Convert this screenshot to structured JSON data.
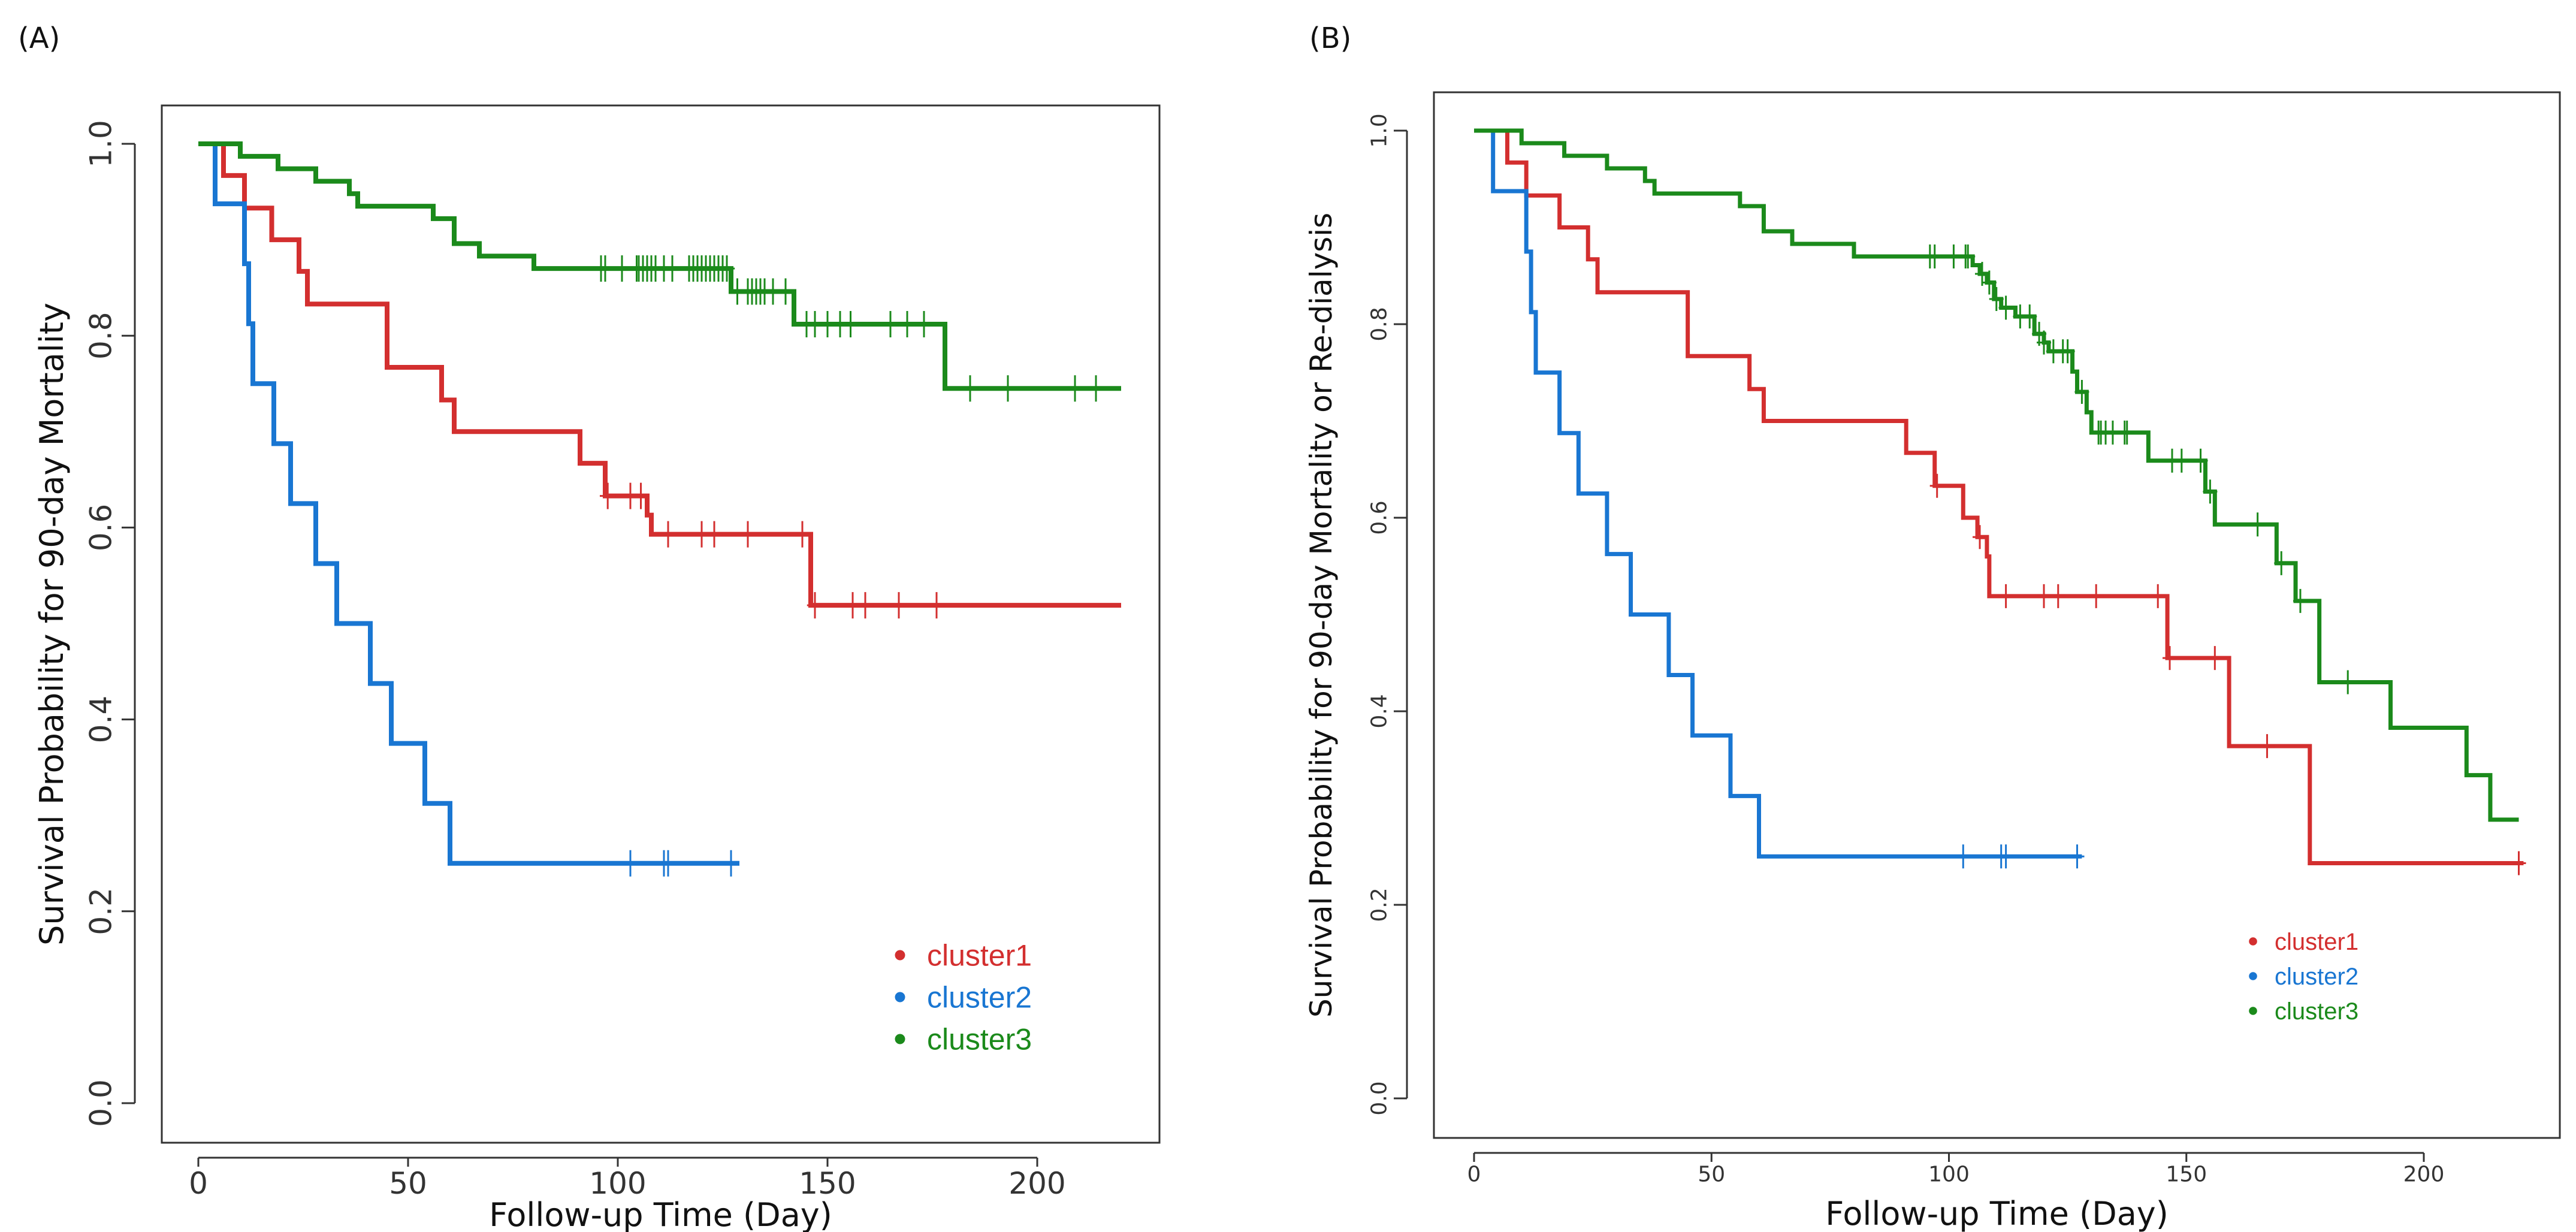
{
  "colors": {
    "cluster1": "#d32f2f",
    "cluster2": "#1976d2",
    "cluster3": "#1b8a1b",
    "axis": "#333333"
  },
  "chart_data": [
    {
      "type": "line",
      "panel_label": "(A)",
      "title": "",
      "xlabel": "Follow-up Time (Day)",
      "ylabel": "Survival Probability for 90-day Mortality",
      "xlim": [
        0,
        220
      ],
      "ylim": [
        0,
        1
      ],
      "xticks": [
        "0",
        "50",
        "100",
        "150",
        "200"
      ],
      "yticks": [
        "0.0",
        "0.2",
        "0.4",
        "0.6",
        "0.8",
        "1.0"
      ],
      "legend_position": "bottom-right",
      "legend": [
        "cluster1",
        "cluster2",
        "cluster3"
      ],
      "series": [
        {
          "name": "cluster1",
          "end": 220,
          "steps": [
            [
              0,
              1
            ],
            [
              6,
              0.967
            ],
            [
              11,
              0.933
            ],
            [
              17.5,
              0.9
            ],
            [
              24,
              0.867
            ],
            [
              26,
              0.833
            ],
            [
              45,
              0.767
            ],
            [
              58,
              0.733
            ],
            [
              61,
              0.7
            ],
            [
              91,
              0.667
            ],
            [
              97,
              0.633
            ],
            [
              107,
              0.613
            ],
            [
              108,
              0.593
            ],
            [
              146,
              0.519
            ]
          ],
          "censored": [
            97.6,
            103,
            105.5,
            112,
            120,
            123,
            131,
            144,
            147,
            156,
            159,
            167,
            176
          ]
        },
        {
          "name": "cluster2",
          "end": 129,
          "steps": [
            [
              0,
              1
            ],
            [
              4,
              0.9375
            ],
            [
              11,
              0.875
            ],
            [
              12,
              0.8125
            ],
            [
              13,
              0.75
            ],
            [
              18,
              0.6875
            ],
            [
              22,
              0.625
            ],
            [
              28,
              0.5625
            ],
            [
              33,
              0.5
            ],
            [
              41,
              0.4375
            ],
            [
              46,
              0.375
            ],
            [
              54,
              0.3125
            ],
            [
              60,
              0.25
            ]
          ],
          "censored": [
            103,
            111,
            112,
            127
          ]
        },
        {
          "name": "cluster3",
          "end": 220,
          "steps": [
            [
              0,
              1
            ],
            [
              10,
              0.987
            ],
            [
              19,
              0.974
            ],
            [
              28,
              0.961
            ],
            [
              36,
              0.948
            ],
            [
              38,
              0.935
            ],
            [
              56,
              0.922
            ],
            [
              61,
              0.896
            ],
            [
              67,
              0.883
            ],
            [
              80,
              0.87
            ],
            [
              127,
              0.846
            ],
            [
              142,
              0.812
            ],
            [
              178,
              0.745
            ]
          ],
          "censored": [
            96,
            97,
            101,
            104.5,
            105,
            106,
            107,
            108,
            109,
            111,
            113,
            117,
            118,
            119,
            120,
            121,
            122,
            123,
            124,
            125,
            126,
            128.5,
            131,
            132,
            133,
            134,
            135,
            137,
            140,
            145,
            147,
            150,
            153,
            155.5,
            165,
            169,
            173,
            184,
            193,
            209,
            214
          ]
        }
      ]
    },
    {
      "type": "line",
      "panel_label": "(B)",
      "title": "",
      "xlabel": "Follow-up Time (Day)",
      "ylabel": "Survival Probability for 90-day Mortality or Re-dialysis",
      "xlim": [
        0,
        220
      ],
      "ylim": [
        0,
        1
      ],
      "xticks": [
        "0",
        "50",
        "100",
        "150",
        "200"
      ],
      "yticks": [
        "0.0",
        "0.2",
        "0.4",
        "0.6",
        "0.8",
        "1.0"
      ],
      "legend_position": "bottom-right",
      "legend": [
        "cluster1",
        "cluster2",
        "cluster3"
      ],
      "series": [
        {
          "name": "cluster1",
          "end": 221,
          "steps": [
            [
              0,
              1
            ],
            [
              7,
              0.967
            ],
            [
              11,
              0.933
            ],
            [
              18,
              0.9
            ],
            [
              24,
              0.867
            ],
            [
              26,
              0.833
            ],
            [
              45,
              0.767
            ],
            [
              58,
              0.733
            ],
            [
              61,
              0.7
            ],
            [
              91,
              0.667
            ],
            [
              97,
              0.633
            ],
            [
              103,
              0.6
            ],
            [
              106,
              0.58
            ],
            [
              108,
              0.56
            ],
            [
              108.5,
              0.519
            ],
            [
              146,
              0.455
            ],
            [
              159,
              0.364
            ],
            [
              176,
              0.243
            ]
          ],
          "censored": [
            97.5,
            106.5,
            112,
            120,
            123,
            131,
            144,
            146.5,
            156,
            167,
            220
          ]
        },
        {
          "name": "cluster2",
          "end": 128,
          "steps": [
            [
              0,
              1
            ],
            [
              4,
              0.9375
            ],
            [
              11,
              0.875
            ],
            [
              12,
              0.8125
            ],
            [
              13,
              0.75
            ],
            [
              18,
              0.6875
            ],
            [
              22,
              0.625
            ],
            [
              28,
              0.5625
            ],
            [
              33,
              0.5
            ],
            [
              41,
              0.4375
            ],
            [
              46,
              0.375
            ],
            [
              54,
              0.3125
            ],
            [
              60,
              0.25
            ]
          ],
          "censored": [
            103,
            111,
            112,
            127
          ]
        },
        {
          "name": "cluster3",
          "end": 220,
          "steps": [
            [
              0,
              1
            ],
            [
              10,
              0.987
            ],
            [
              19,
              0.974
            ],
            [
              28,
              0.961
            ],
            [
              36,
              0.948
            ],
            [
              38,
              0.935
            ],
            [
              56,
              0.922
            ],
            [
              61,
              0.896
            ],
            [
              67,
              0.883
            ],
            [
              80,
              0.87
            ],
            [
              105,
              0.861
            ],
            [
              106.5,
              0.852
            ],
            [
              108,
              0.843
            ],
            [
              109.5,
              0.826
            ],
            [
              111,
              0.817
            ],
            [
              114,
              0.808
            ],
            [
              118,
              0.79
            ],
            [
              120,
              0.781
            ],
            [
              121,
              0.772
            ],
            [
              126,
              0.751
            ],
            [
              127,
              0.73
            ],
            [
              129,
              0.709
            ],
            [
              130,
              0.688
            ],
            [
              142,
              0.659
            ],
            [
              154,
              0.627
            ],
            [
              156,
              0.593
            ],
            [
              169,
              0.553
            ],
            [
              173,
              0.514
            ],
            [
              178,
              0.43
            ],
            [
              193,
              0.383
            ],
            [
              209,
              0.334
            ],
            [
              214,
              0.288
            ]
          ],
          "censored": [
            96,
            97,
            101,
            103.5,
            104,
            107,
            108.5,
            110,
            112,
            115,
            117,
            119,
            120,
            122,
            124,
            125,
            128,
            131.5,
            132,
            133,
            134.5,
            137,
            137.5,
            147,
            149,
            153,
            155,
            165,
            170,
            174,
            184
          ]
        }
      ]
    }
  ]
}
